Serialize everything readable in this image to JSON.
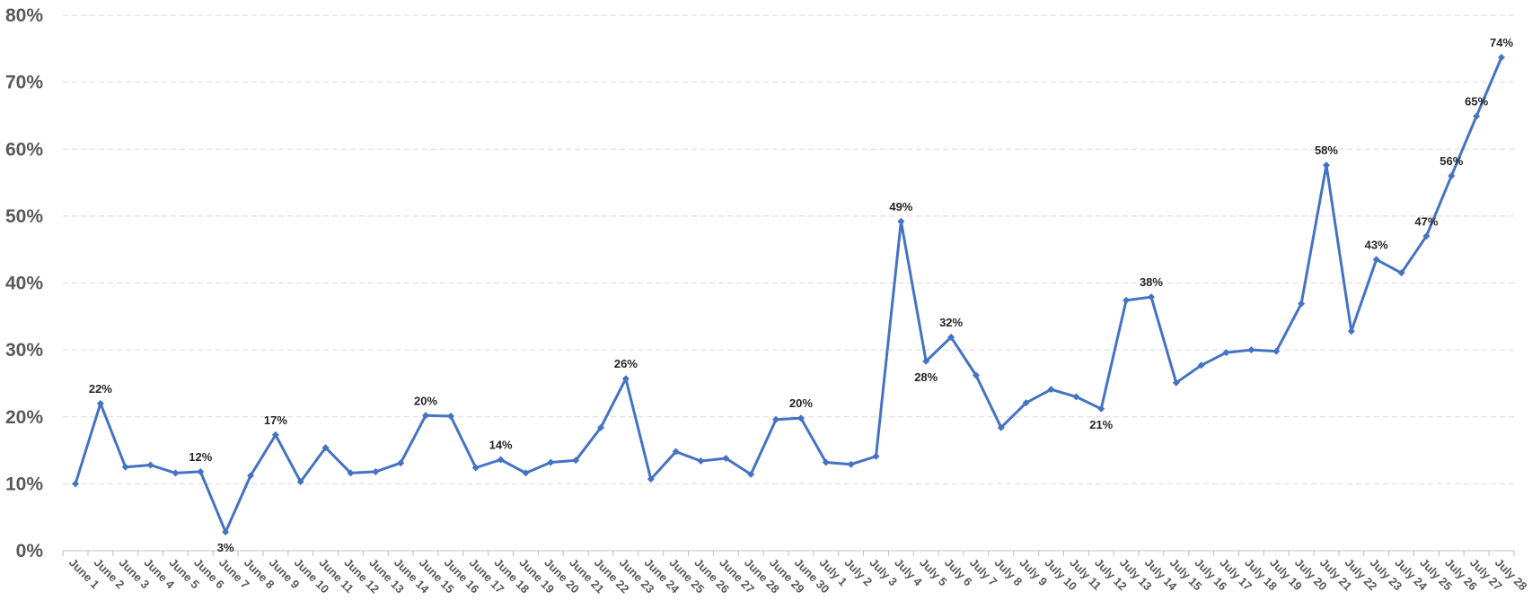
{
  "chart_data": {
    "type": "line",
    "title": "",
    "xlabel": "",
    "ylabel": "",
    "ylim": [
      0,
      80
    ],
    "ytick_labels": [
      "0%",
      "10%",
      "20%",
      "30%",
      "40%",
      "50%",
      "60%",
      "70%",
      "80%"
    ],
    "grid": true,
    "legend": "none",
    "line_color": "#4472C4",
    "categories": [
      "June 1",
      "June 2",
      "June 3",
      "June 4",
      "June 5",
      "June 6",
      "June 7",
      "June 8",
      "June 9",
      "June 10",
      "June 11",
      "June 12",
      "June 13",
      "June 14",
      "June 15",
      "June 16",
      "June 17",
      "June 18",
      "June 19",
      "June 20",
      "June 21",
      "June 22",
      "June 23",
      "June 24",
      "June 25",
      "June 26",
      "June 27",
      "June 28",
      "June 29",
      "June 30",
      "July 1",
      "July 2",
      "July 3",
      "July 4",
      "July 5",
      "July 6",
      "July 7",
      "July 8",
      "July 9",
      "July 10",
      "July 11",
      "July 12",
      "July 13",
      "July 14",
      "July 15",
      "July 16",
      "July 17",
      "July 18",
      "July 19",
      "July 20",
      "July 21",
      "July 22",
      "July 23",
      "July 24",
      "July 25",
      "July 26",
      "July 27",
      "July 28"
    ],
    "series": [
      {
        "values": [
          10,
          22,
          12.5,
          12.8,
          11.6,
          11.8,
          2.8,
          11.2,
          17.3,
          10.3,
          15.4,
          11.6,
          11.8,
          13.1,
          20.2,
          20.1,
          12.4,
          13.6,
          11.6,
          13.2,
          13.5,
          18.4,
          25.7,
          10.7,
          14.8,
          13.4,
          13.8,
          11.4,
          19.6,
          19.8,
          13.2,
          12.9,
          14.1,
          49.2,
          28.3,
          31.9,
          26.2,
          18.4,
          22.1,
          24.1,
          23,
          21.2,
          37.4,
          37.9,
          25.1,
          27.7,
          29.6,
          30,
          29.8,
          36.9,
          57.6,
          32.8,
          43.5,
          41.5,
          47,
          56,
          64.9,
          73.7
        ]
      }
    ],
    "data_labels": [
      {
        "index": 1,
        "text": "22%",
        "position": "above"
      },
      {
        "index": 5,
        "text": "12%",
        "position": "above"
      },
      {
        "index": 6,
        "text": "3%",
        "position": "below"
      },
      {
        "index": 8,
        "text": "17%",
        "position": "above"
      },
      {
        "index": 14,
        "text": "20%",
        "position": "above"
      },
      {
        "index": 17,
        "text": "14%",
        "position": "above"
      },
      {
        "index": 22,
        "text": "26%",
        "position": "above"
      },
      {
        "index": 29,
        "text": "20%",
        "position": "above"
      },
      {
        "index": 33,
        "text": "49%",
        "position": "above"
      },
      {
        "index": 34,
        "text": "28%",
        "position": "below"
      },
      {
        "index": 35,
        "text": "32%",
        "position": "above"
      },
      {
        "index": 41,
        "text": "21%",
        "position": "below"
      },
      {
        "index": 43,
        "text": "38%",
        "position": "above"
      },
      {
        "index": 50,
        "text": "58%",
        "position": "above"
      },
      {
        "index": 52,
        "text": "43%",
        "position": "above"
      },
      {
        "index": 54,
        "text": "47%",
        "position": "above"
      },
      {
        "index": 55,
        "text": "56%",
        "position": "above"
      },
      {
        "index": 56,
        "text": "65%",
        "position": "above"
      },
      {
        "index": 57,
        "text": "74%",
        "position": "above"
      }
    ]
  }
}
